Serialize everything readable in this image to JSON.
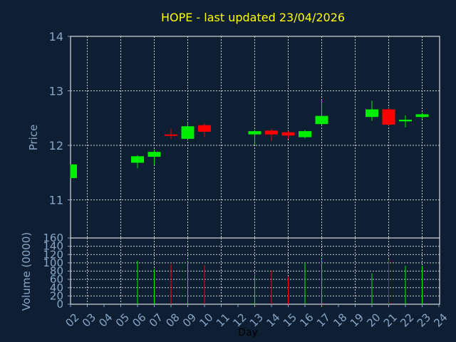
{
  "chart_data": {
    "type": "candlestick",
    "title": "HOPE - last updated 23/04/2026",
    "xlabel": "Day",
    "price_panel": {
      "ylabel": "Price",
      "ylim": [
        10.3,
        14
      ],
      "yticks": [
        "11",
        "12",
        "13",
        "14"
      ]
    },
    "volume_panel": {
      "ylabel": "Volume (0000)",
      "ylim": [
        0,
        160
      ],
      "yticks": [
        "0",
        "20",
        "40",
        "60",
        "80",
        "100",
        "120",
        "140",
        "160"
      ]
    },
    "x_ticks": [
      "02",
      "03",
      "04",
      "05",
      "06",
      "07",
      "08",
      "09",
      "10",
      "11",
      "12",
      "13",
      "14",
      "15",
      "16",
      "17",
      "18",
      "19",
      "20",
      "21",
      "22",
      "23",
      "24"
    ],
    "candles": [
      {
        "day": "02",
        "open": 11.4,
        "high": 11.65,
        "low": 11.4,
        "close": 11.65,
        "volume": 0
      },
      {
        "day": "06",
        "open": 11.68,
        "high": 11.82,
        "low": 11.58,
        "close": 11.8,
        "volume": 105
      },
      {
        "day": "07",
        "open": 11.79,
        "high": 11.92,
        "low": 11.65,
        "close": 11.88,
        "volume": 85
      },
      {
        "day": "08",
        "open": 12.2,
        "high": 12.3,
        "low": 12.12,
        "close": 12.18,
        "volume": 97
      },
      {
        "day": "09",
        "open": 12.12,
        "high": 12.42,
        "low": 12.1,
        "close": 12.35,
        "volume": 105
      },
      {
        "day": "10",
        "open": 12.37,
        "high": 12.4,
        "low": 12.15,
        "close": 12.25,
        "volume": 95
      },
      {
        "day": "13",
        "open": 12.2,
        "high": 12.28,
        "low": 12.02,
        "close": 12.26,
        "volume": 72
      },
      {
        "day": "14",
        "open": 12.27,
        "high": 12.3,
        "low": 12.08,
        "close": 12.2,
        "volume": 82
      },
      {
        "day": "15",
        "open": 12.24,
        "high": 12.26,
        "low": 12.12,
        "close": 12.18,
        "volume": 65
      },
      {
        "day": "16",
        "open": 12.15,
        "high": 12.28,
        "low": 12.13,
        "close": 12.26,
        "volume": 100
      },
      {
        "day": "17",
        "open": 12.39,
        "high": 12.83,
        "low": 12.37,
        "close": 12.54,
        "volume": 107
      },
      {
        "day": "20",
        "open": 12.52,
        "high": 12.82,
        "low": 12.45,
        "close": 12.66,
        "volume": 75
      },
      {
        "day": "21",
        "open": 12.66,
        "high": 12.68,
        "low": 12.36,
        "close": 12.38,
        "volume": 107
      },
      {
        "day": "22",
        "open": 12.44,
        "high": 12.55,
        "low": 12.33,
        "close": 12.47,
        "volume": 93
      },
      {
        "day": "23",
        "open": 12.52,
        "high": 12.6,
        "low": 12.49,
        "close": 12.57,
        "volume": 93
      }
    ],
    "grid": true
  },
  "colors": {
    "background": "#0f1f33",
    "up": "#00ee00",
    "down": "#ff0000",
    "title": "#ffff00",
    "axis_text": "#87a6c7",
    "grid": "#d0d0d0",
    "xlabel": "#000000"
  }
}
